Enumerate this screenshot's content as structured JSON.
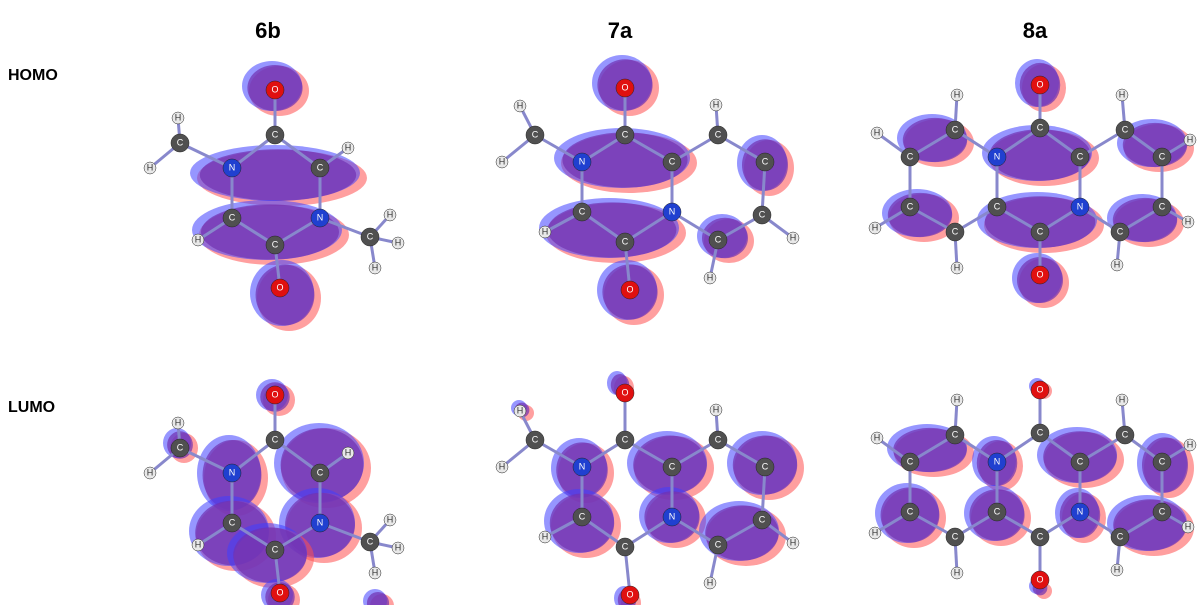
{
  "columns": [
    "6b",
    "7a",
    "8a"
  ],
  "rows": [
    "HOMO",
    "LUMO"
  ],
  "molecules": [
    {
      "atoms": [
        "O",
        "C",
        "N",
        "C",
        "C",
        "N",
        "C",
        "O",
        "C",
        "H",
        "H",
        "H",
        "H",
        "C",
        "H",
        "H",
        "H"
      ]
    },
    {
      "atoms": [
        "O",
        "C",
        "N",
        "C",
        "C",
        "N",
        "C",
        "O",
        "C",
        "H",
        "H",
        "C",
        "H",
        "C",
        "C",
        "H",
        "C",
        "H",
        "H"
      ]
    },
    {
      "atoms": [
        "O",
        "C",
        "N",
        "C",
        "C",
        "N",
        "C",
        "O",
        "C",
        "H",
        "C",
        "H",
        "C",
        "H",
        "C",
        "H",
        "C",
        "H",
        "C",
        "H",
        "C",
        "H",
        "C",
        "H"
      ]
    }
  ]
}
